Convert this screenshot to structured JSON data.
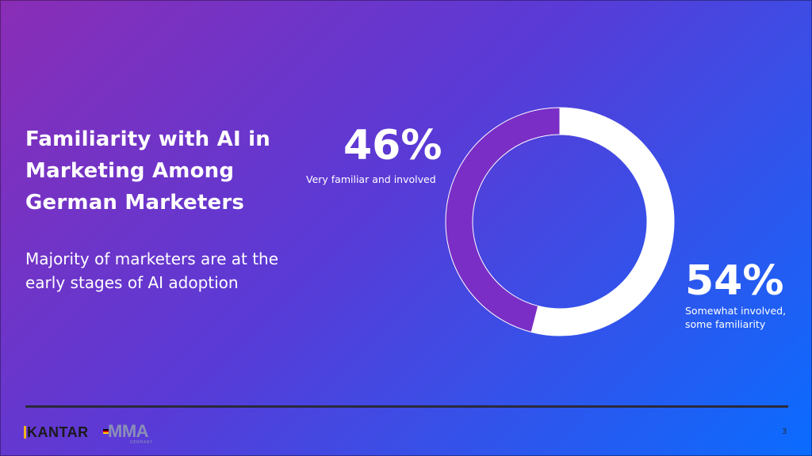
{
  "slide": {
    "title": "Familiarity with AI in Marketing Among German Marketers",
    "subtitle": "Majority of marketers are at the early stages of AI adoption",
    "page_number": "3"
  },
  "chart_data": {
    "type": "pie",
    "labels": [
      "Very familiar and involved",
      "Somewhat involved, some familiarity"
    ],
    "values": [
      46,
      54
    ],
    "display_values": [
      "46%",
      "54%"
    ],
    "colors": [
      "#7a2ec6",
      "#ffffff"
    ],
    "title": "",
    "legend": "none"
  },
  "labels": {
    "label_46_pct": "46%",
    "label_46_text": "Very familiar and involved",
    "label_54_pct": "54%",
    "label_54_text": "Somewhat involved, some familiarity"
  },
  "logos": {
    "kantar": "KANTAR",
    "mma": "MMA",
    "mma_sub": "GERMANY"
  },
  "colors": {
    "background_start": "#8a2db6",
    "background_end": "#0a6cff",
    "accent_purple": "#7a2ec6",
    "text": "#ffffff"
  }
}
